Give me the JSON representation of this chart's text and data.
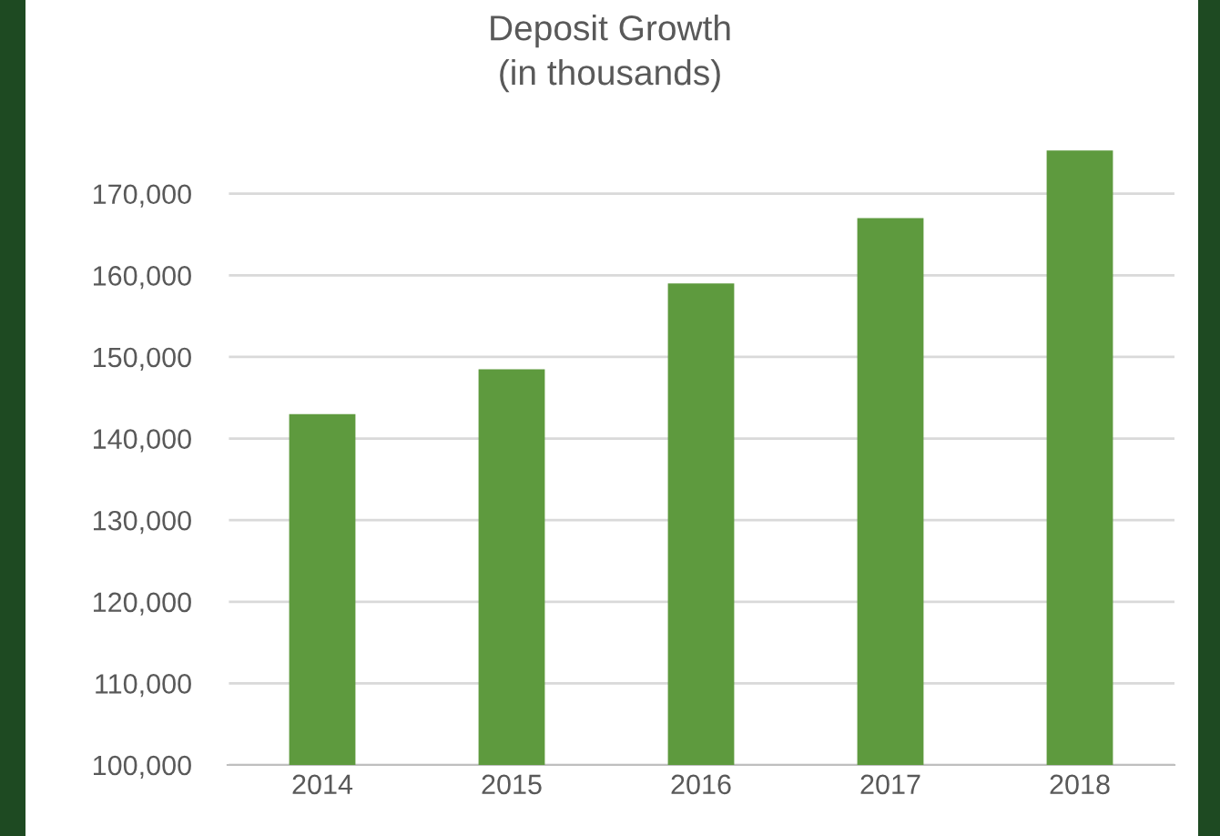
{
  "chart_data": {
    "type": "bar",
    "title": "Deposit Growth\n(in thousands)",
    "categories": [
      "2014",
      "2015",
      "2016",
      "2017",
      "2018"
    ],
    "values": [
      143000,
      148500,
      159000,
      167000,
      175300
    ],
    "color": "#5e9a3e",
    "ylim": [
      100000,
      177000
    ],
    "yticks": [
      {
        "value": 100000,
        "label": "100,000"
      },
      {
        "value": 110000,
        "label": "110,000"
      },
      {
        "value": 120000,
        "label": "120,000"
      },
      {
        "value": 130000,
        "label": "130,000"
      },
      {
        "value": 140000,
        "label": "140,000"
      },
      {
        "value": 150000,
        "label": "150,000"
      },
      {
        "value": 160000,
        "label": "160,000"
      },
      {
        "value": 170000,
        "label": "170,000"
      }
    ],
    "grid": "y",
    "legend": false
  }
}
